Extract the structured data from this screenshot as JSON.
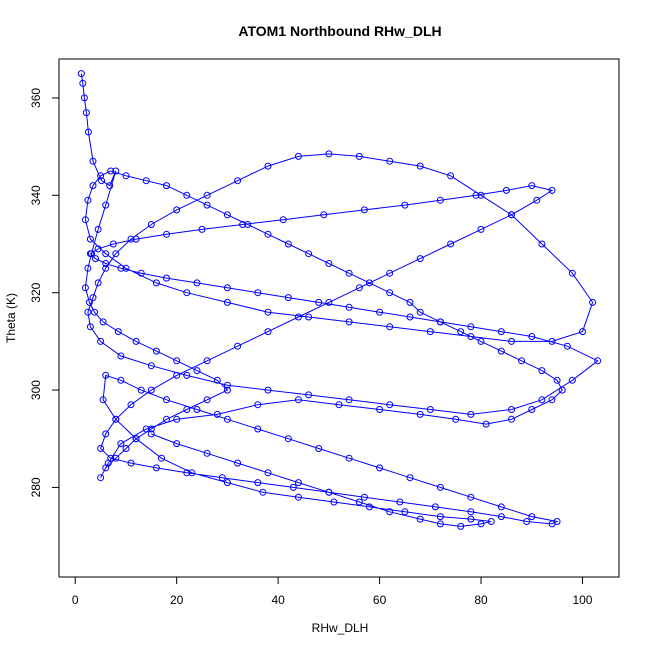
{
  "chart_data": {
    "type": "line",
    "title": "ATOM1 Northbound RHw_DLH",
    "xlabel": "RHw_DLH",
    "ylabel": "Theta (K)",
    "xlim": [
      -3.2,
      107.2
    ],
    "ylim": [
      261.6,
      368.0
    ],
    "xticks": [
      0,
      20,
      40,
      60,
      80,
      100
    ],
    "yticks": [
      280,
      300,
      320,
      340,
      360
    ],
    "grid": false,
    "legend": "none",
    "series": [
      {
        "color": "#0000ff",
        "marker": "open-circle",
        "x": [
          1.2,
          1.5,
          1.8,
          2.2,
          2.6,
          3.5,
          5.2,
          6.8,
          8.0,
          6.0,
          4.5,
          3.2,
          2.5,
          2.0,
          2.8,
          3.8,
          5.5,
          8.5,
          12.0,
          16.0,
          20.0,
          24.0,
          28.0,
          30.0,
          26.0,
          22.0,
          18.0,
          15.0,
          12.0,
          10.0,
          8.0,
          6.0,
          5.0,
          6.5,
          9.0,
          14.0,
          20.0,
          28.0,
          36.0,
          44.0,
          52.0,
          60.0,
          68.0,
          75.0,
          81.0,
          86.0,
          90.0,
          94.0,
          96.0,
          95.0,
          92.0,
          88.0,
          84.0,
          80.0,
          76.0,
          72.0,
          68.0,
          66.0,
          62.0,
          58.0,
          54.0,
          50.0,
          46.0,
          42.0,
          38.0,
          34.0,
          30.0,
          26.0,
          22.0,
          18.0,
          14.0,
          10.0,
          7.0,
          5.0,
          3.5,
          2.5,
          2.0,
          3.0,
          6.0,
          10.0,
          16.0,
          22.0,
          30.0,
          38.0,
          46.0,
          54.0,
          62.0,
          70.0,
          78.0,
          86.0,
          94.0,
          100.0,
          102.0,
          98.0,
          92.0,
          86.0,
          80.0,
          74.0,
          68.0,
          62.0,
          56.0,
          50.0,
          44.0,
          38.0,
          32.0,
          26.0,
          20.0,
          15.0,
          11.0,
          8.0,
          6.0,
          4.5,
          3.5,
          2.5,
          3.0,
          5.0,
          9.0,
          15.0,
          22.0,
          30.0,
          38.0,
          46.0,
          54.0,
          62.0,
          70.0,
          78.0,
          86.0,
          92.0,
          98.0,
          103.0,
          97.0,
          90.0,
          84.0,
          78.0,
          72.0,
          66.0,
          60.0,
          54.0,
          48.0,
          42.0,
          36.0,
          30.0,
          24.0,
          18.0,
          13.0,
          9.0,
          6.0,
          4.0,
          3.0,
          4.5,
          7.5,
          12.0,
          18.0,
          25.0,
          33.0,
          41.0,
          49.0,
          57.0,
          65.0,
          72.0,
          79.0,
          85.0,
          90.0,
          94.0,
          91.0,
          86.0,
          80.0,
          74.0,
          68.0,
          62.0,
          56.0,
          50.0,
          44.0,
          38.0,
          32.0,
          26.0,
          20.0,
          15.0,
          11.0,
          8.0,
          6.0,
          5.0,
          7.0,
          11.0,
          16.0,
          22.0,
          29.0,
          36.0,
          43.0,
          50.0,
          57.0,
          64.0,
          71.0,
          78.0,
          84.0,
          89.0,
          94.0,
          95.0,
          90.0,
          84.0,
          78.0,
          72.0,
          66.0,
          60.0,
          54.0,
          48.0,
          42.0,
          36.0,
          30.0,
          24.0,
          18.0,
          13.0,
          9.0,
          6.0,
          5.5,
          8.0,
          12.0,
          17.0,
          23.0,
          30.0,
          37.0,
          44.0,
          51.0,
          58.0,
          65.0,
          72.0,
          78.0,
          82.0,
          80.0,
          76.0,
          72.0,
          68.0,
          62.0,
          56.0,
          50.0,
          44.0,
          38.0,
          32.0,
          26.0,
          20.0,
          15.0
        ],
        "y": [
          365.0,
          363.0,
          360.0,
          357.0,
          353.0,
          347.0,
          343.0,
          342.0,
          345.0,
          338.0,
          333.0,
          328.0,
          325.0,
          321.0,
          318.0,
          316.0,
          314.0,
          312.0,
          310.0,
          308.0,
          306.0,
          304.0,
          302.0,
          300.0,
          298.0,
          296.0,
          294.0,
          292.0,
          290.0,
          288.0,
          286.0,
          284.0,
          282.0,
          285.0,
          289.0,
          292.0,
          294.0,
          295.0,
          297.0,
          298.0,
          297.0,
          296.0,
          295.0,
          294.0,
          293.0,
          294.0,
          296.0,
          298.0,
          300.0,
          302.0,
          304.0,
          306.0,
          308.0,
          310.0,
          312.0,
          314.0,
          316.0,
          318.0,
          320.0,
          322.0,
          324.0,
          326.0,
          328.0,
          330.0,
          332.0,
          334.0,
          336.0,
          338.0,
          340.0,
          342.0,
          343.0,
          344.0,
          345.0,
          344.0,
          342.0,
          339.0,
          335.0,
          331.0,
          328.0,
          325.0,
          322.0,
          320.0,
          318.0,
          316.0,
          315.0,
          314.0,
          313.0,
          312.0,
          311.0,
          310.0,
          310.0,
          312.0,
          318.0,
          324.0,
          330.0,
          336.0,
          340.0,
          344.0,
          346.0,
          347.0,
          348.0,
          348.5,
          348.0,
          346.0,
          343.0,
          340.0,
          337.0,
          334.0,
          331.0,
          328.0,
          325.0,
          322.0,
          319.0,
          316.0,
          313.0,
          310.0,
          307.0,
          305.0,
          303.0,
          301.0,
          300.0,
          299.0,
          298.0,
          297.0,
          296.0,
          295.0,
          296.0,
          298.0,
          302.0,
          306.0,
          309.0,
          311.0,
          312.0,
          313.0,
          314.0,
          315.0,
          316.0,
          317.0,
          318.0,
          319.0,
          320.0,
          321.0,
          322.0,
          323.0,
          324.0,
          325.0,
          326.0,
          327.0,
          328.0,
          329.0,
          330.0,
          331.0,
          332.0,
          333.0,
          334.0,
          335.0,
          336.0,
          337.0,
          338.0,
          339.0,
          340.0,
          341.0,
          342.0,
          341.0,
          339.0,
          336.0,
          333.0,
          330.0,
          327.0,
          324.0,
          321.0,
          318.0,
          315.0,
          312.0,
          309.0,
          306.0,
          303.0,
          300.0,
          297.0,
          294.0,
          291.0,
          288.0,
          286.0,
          285.0,
          284.0,
          283.0,
          282.0,
          281.0,
          280.0,
          279.0,
          278.0,
          277.0,
          276.0,
          275.0,
          274.0,
          273.0,
          272.5,
          273.0,
          274.0,
          276.0,
          278.0,
          280.0,
          282.0,
          284.0,
          286.0,
          288.0,
          290.0,
          292.0,
          294.0,
          296.0,
          298.0,
          300.0,
          302.0,
          303.0,
          298.0,
          294.0,
          290.0,
          286.0,
          283.0,
          281.0,
          279.0,
          278.0,
          277.0,
          276.0,
          275.0,
          274.0,
          273.5,
          273.0,
          272.5,
          272.0,
          272.5,
          273.5,
          275.0,
          277.0,
          279.0,
          281.0,
          283.0,
          285.0,
          287.0,
          289.0,
          291.0
        ]
      }
    ]
  }
}
